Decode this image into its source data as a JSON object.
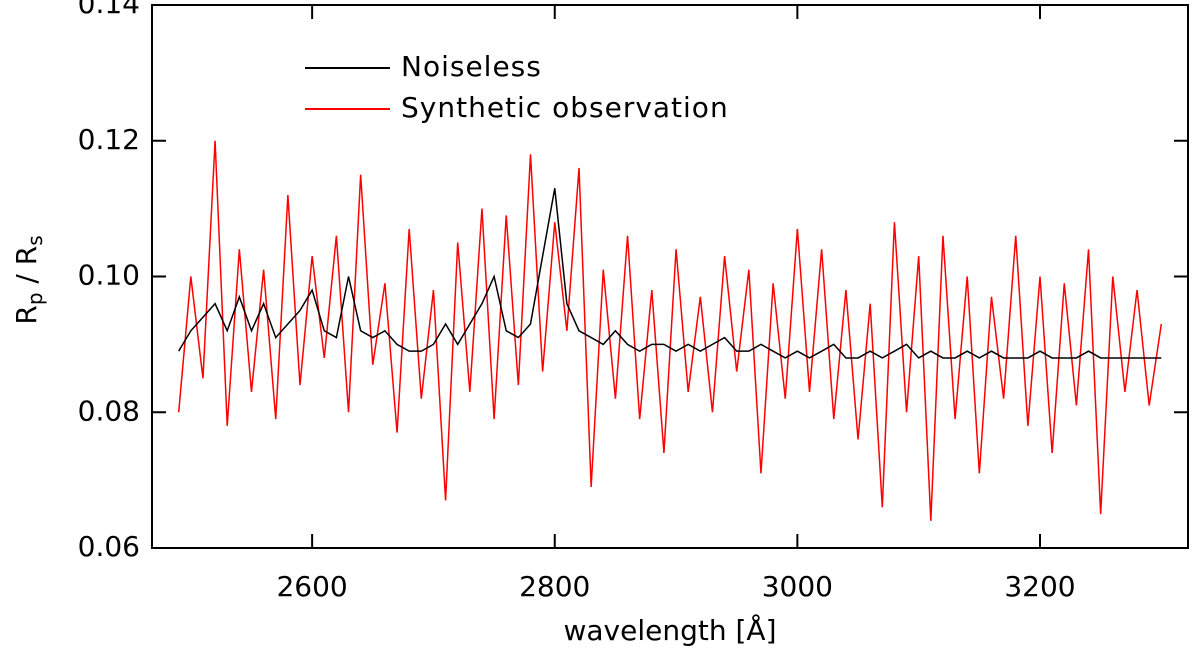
{
  "chart_data": {
    "type": "line",
    "xlabel": "wavelength [Å]",
    "ylabel": [
      "R",
      "p",
      " / R",
      "s"
    ],
    "x": [
      2490,
      2500,
      2510,
      2520,
      2530,
      2540,
      2550,
      2560,
      2570,
      2580,
      2590,
      2600,
      2610,
      2620,
      2630,
      2640,
      2650,
      2660,
      2670,
      2680,
      2690,
      2700,
      2710,
      2720,
      2730,
      2740,
      2750,
      2760,
      2770,
      2780,
      2790,
      2800,
      2810,
      2820,
      2830,
      2840,
      2850,
      2860,
      2870,
      2880,
      2890,
      2900,
      2910,
      2920,
      2930,
      2940,
      2950,
      2960,
      2970,
      2980,
      2990,
      3000,
      3010,
      3020,
      3030,
      3040,
      3050,
      3060,
      3070,
      3080,
      3090,
      3100,
      3110,
      3120,
      3130,
      3140,
      3150,
      3160,
      3170,
      3180,
      3190,
      3200,
      3210,
      3220,
      3230,
      3240,
      3250,
      3260,
      3270,
      3280,
      3290,
      3300
    ],
    "series": [
      {
        "name": "Noiseless",
        "color": "#000000",
        "values": [
          0.089,
          0.092,
          0.094,
          0.096,
          0.092,
          0.097,
          0.092,
          0.096,
          0.091,
          0.093,
          0.095,
          0.098,
          0.092,
          0.091,
          0.1,
          0.092,
          0.091,
          0.092,
          0.09,
          0.089,
          0.089,
          0.09,
          0.093,
          0.09,
          0.093,
          0.096,
          0.1,
          0.092,
          0.091,
          0.093,
          0.103,
          0.113,
          0.096,
          0.092,
          0.091,
          0.09,
          0.092,
          0.09,
          0.089,
          0.09,
          0.09,
          0.089,
          0.09,
          0.089,
          0.09,
          0.091,
          0.089,
          0.089,
          0.09,
          0.089,
          0.088,
          0.089,
          0.088,
          0.089,
          0.09,
          0.088,
          0.088,
          0.089,
          0.088,
          0.089,
          0.09,
          0.088,
          0.089,
          0.088,
          0.088,
          0.089,
          0.088,
          0.089,
          0.088,
          0.088,
          0.088,
          0.089,
          0.088,
          0.088,
          0.088,
          0.089,
          0.088,
          0.088,
          0.088,
          0.088,
          0.088,
          0.088
        ]
      },
      {
        "name": "Synthetic observation",
        "color": "#ff0000",
        "values": [
          0.08,
          0.1,
          0.085,
          0.12,
          0.078,
          0.104,
          0.083,
          0.101,
          0.079,
          0.112,
          0.084,
          0.103,
          0.088,
          0.106,
          0.08,
          0.115,
          0.087,
          0.099,
          0.077,
          0.107,
          0.082,
          0.098,
          0.067,
          0.105,
          0.083,
          0.11,
          0.079,
          0.109,
          0.084,
          0.118,
          0.086,
          0.108,
          0.092,
          0.116,
          0.069,
          0.101,
          0.082,
          0.106,
          0.079,
          0.098,
          0.074,
          0.104,
          0.083,
          0.097,
          0.08,
          0.103,
          0.086,
          0.101,
          0.071,
          0.099,
          0.082,
          0.107,
          0.083,
          0.104,
          0.079,
          0.098,
          0.076,
          0.096,
          0.066,
          0.108,
          0.08,
          0.103,
          0.064,
          0.106,
          0.079,
          0.1,
          0.071,
          0.097,
          0.082,
          0.106,
          0.078,
          0.1,
          0.074,
          0.099,
          0.081,
          0.104,
          0.065,
          0.1,
          0.083,
          0.098,
          0.081,
          0.093
        ]
      }
    ],
    "xlim": [
      2468,
      3322
    ],
    "xticks": [
      2600,
      2800,
      3000,
      3200
    ],
    "ylim": [
      0.06,
      0.14
    ],
    "yticks": [
      {
        "value": 0.06,
        "label": "0.06"
      },
      {
        "value": 0.08,
        "label": "0.08"
      },
      {
        "value": 0.1,
        "label": "0.10"
      },
      {
        "value": 0.12,
        "label": "0.12"
      },
      {
        "value": 0.14,
        "label": "0.14"
      }
    ],
    "legend": "upper left"
  }
}
